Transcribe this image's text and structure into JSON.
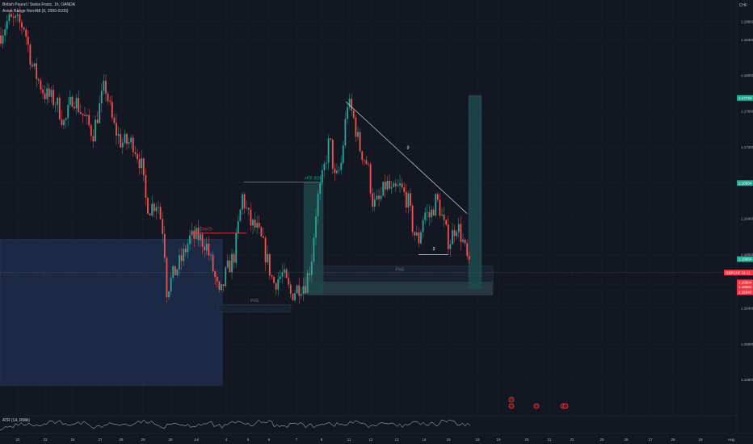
{
  "header": {
    "symbol_line": "British Pound / Swiss Franc, 1h, OANDA",
    "indicator_line": "Asian Range NoroN8 (0, 2000-0100)",
    "currency": "CHF"
  },
  "atr_panel": {
    "label": "ATR (14, RMA)",
    "value_label": "0.00300"
  },
  "chart_data": {
    "type": "candlestick",
    "symbol": "British Pound / Swiss Franc",
    "timeframe": "1h",
    "exchange": "OANDA",
    "y_axis": {
      "ticks": [
        1.186,
        1.184,
        1.18,
        1.176,
        1.172,
        1.168,
        1.164,
        1.16,
        1.156,
        1.154,
        1.15,
        1.146
      ],
      "range": [
        1.142,
        1.188
      ]
    },
    "x_axis": {
      "ticks": [
        {
          "label": "22",
          "i": 22
        },
        {
          "label": "23",
          "i": 56
        },
        {
          "label": "24",
          "i": 90
        },
        {
          "label": "27",
          "i": 124
        },
        {
          "label": "28",
          "i": 150
        },
        {
          "label": "29",
          "i": 177
        },
        {
          "label": "30",
          "i": 211
        },
        {
          "label": "Jul",
          "i": 243
        },
        {
          "label": "4",
          "i": 280
        },
        {
          "label": "5",
          "i": 307
        },
        {
          "label": "6",
          "i": 333
        },
        {
          "label": "7",
          "i": 367
        },
        {
          "label": "8",
          "i": 398
        },
        {
          "label": "11",
          "i": 432
        },
        {
          "label": "12",
          "i": 459
        },
        {
          "label": "13",
          "i": 491
        },
        {
          "label": "14",
          "i": 525
        },
        {
          "label": "15",
          "i": 555
        },
        {
          "label": "18",
          "i": 591
        },
        {
          "label": "19",
          "i": 617
        },
        {
          "label": "20",
          "i": 652
        },
        {
          "label": "21",
          "i": 680
        },
        {
          "label": "22",
          "i": 708
        },
        {
          "label": "25",
          "i": 745
        },
        {
          "label": "26",
          "i": 775
        },
        {
          "label": "27",
          "i": 805
        },
        {
          "label": "28",
          "i": 833
        },
        {
          "label": "29",
          "i": 867
        },
        {
          "label": "Aug",
          "i": 905
        }
      ],
      "last_bar": 582
    },
    "price_path": [
      [
        0,
        1.1845
      ],
      [
        10,
        1.1862
      ],
      [
        20,
        1.186
      ],
      [
        30,
        1.1855
      ],
      [
        40,
        1.181
      ],
      [
        55,
        1.178
      ],
      [
        70,
        1.177
      ],
      [
        80,
        1.1745
      ],
      [
        90,
        1.1778
      ],
      [
        100,
        1.176
      ],
      [
        115,
        1.1735
      ],
      [
        130,
        1.179
      ],
      [
        140,
        1.1745
      ],
      [
        150,
        1.1725
      ],
      [
        165,
        1.1725
      ],
      [
        175,
        1.17
      ],
      [
        180,
        1.1662
      ],
      [
        185,
        1.1652
      ],
      [
        195,
        1.166
      ],
      [
        203,
        1.162
      ],
      [
        206,
        1.156
      ],
      [
        215,
        1.1578
      ],
      [
        225,
        1.1595
      ],
      [
        235,
        1.1618
      ],
      [
        245,
        1.162
      ],
      [
        255,
        1.1612
      ],
      [
        265,
        1.1578
      ],
      [
        272,
        1.155
      ],
      [
        280,
        1.158
      ],
      [
        290,
        1.16
      ],
      [
        300,
        1.1665
      ],
      [
        310,
        1.1635
      ],
      [
        318,
        1.1628
      ],
      [
        325,
        1.1612
      ],
      [
        332,
        1.159
      ],
      [
        338,
        1.1568
      ],
      [
        350,
        1.1578
      ],
      [
        360,
        1.1555
      ],
      [
        370,
        1.1565
      ],
      [
        378,
        1.1568
      ],
      [
        385,
        1.159
      ],
      [
        392,
        1.1658
      ],
      [
        398,
        1.168
      ],
      [
        408,
        1.173
      ],
      [
        415,
        1.168
      ],
      [
        422,
        1.17
      ],
      [
        430,
        1.177
      ],
      [
        437,
        1.1755
      ],
      [
        445,
        1.172
      ],
      [
        455,
        1.17
      ],
      [
        462,
        1.1655
      ],
      [
        470,
        1.166
      ],
      [
        478,
        1.168
      ],
      [
        485,
        1.1668
      ],
      [
        495,
        1.1675
      ],
      [
        505,
        1.166
      ],
      [
        512,
        1.1625
      ],
      [
        518,
        1.1615
      ],
      [
        525,
        1.1648
      ],
      [
        532,
        1.1642
      ],
      [
        540,
        1.1662
      ],
      [
        545,
        1.165
      ],
      [
        550,
        1.163
      ],
      [
        556,
        1.1613
      ],
      [
        565,
        1.1635
      ],
      [
        572,
        1.1618
      ],
      [
        578,
        1.1595
      ],
      [
        582,
        1.158
      ]
    ],
    "atr_series_path": [
      0,
      0.6,
      0.3,
      0.8,
      0.4,
      0.7,
      0.2,
      0.6,
      0.5,
      0.9,
      0.3,
      0.7,
      0.4,
      0.6,
      0.3,
      0.8,
      0.5,
      0.9,
      0.4,
      0.6,
      0.3,
      0.7,
      0.5,
      0.8,
      0.4,
      0.6,
      0.3,
      0.7,
      0.5,
      1.0,
      0.4,
      0.6
    ],
    "annotations": [
      {
        "type": "label",
        "text": "ChoCh",
        "color": "#f23645",
        "i": 255,
        "price": 1.1627
      },
      {
        "type": "label",
        "text": "HTF BOS",
        "color": "#22ab94",
        "i": 388,
        "price": 1.1684
      },
      {
        "type": "label",
        "text": "$",
        "color": "#d1d4dc",
        "i": 537,
        "price": 1.1605
      },
      {
        "type": "label",
        "text": "$",
        "color": "#d1d4dc",
        "i": 505,
        "price": 1.1718
      },
      {
        "type": "label",
        "text": "FVG",
        "color": "#787b86",
        "i": 315,
        "price": 1.1547
      },
      {
        "type": "label",
        "text": "FVG",
        "color": "#787b86",
        "i": 495,
        "price": 1.1582
      }
    ],
    "levels": [
      {
        "name": "ChoCh level",
        "price": 1.1624,
        "from_i": 236,
        "to_i": 305,
        "color": "#f23645"
      },
      {
        "name": "HTF BOS level",
        "price": 1.1681,
        "from_i": 302,
        "to_i": 395,
        "color": "#22ab94"
      },
      {
        "name": "equal lows",
        "price": 1.16,
        "from_i": 518,
        "to_i": 555,
        "color": "#d1d4dc"
      }
    ],
    "trendline": {
      "from": {
        "i": 428,
        "price": 1.1771
      },
      "to": {
        "i": 578,
        "price": 1.1646
      }
    },
    "zones": [
      {
        "name": "demand zone",
        "i_from": 0,
        "i_to": 275,
        "price_top": 1.1617,
        "price_bottom": 1.1454,
        "fill": "#1e2d4a"
      },
      {
        "name": "fvg left",
        "i_from": 270,
        "i_to": 360,
        "price_top": 1.1544,
        "price_bottom": 1.1536,
        "fill": "#1a2436"
      },
      {
        "name": "fvg right",
        "i_from": 380,
        "i_to": 610,
        "price_top": 1.1587,
        "price_bottom": 1.1569,
        "fill": "#1a2436"
      },
      {
        "name": "teal zone",
        "i_from": 380,
        "i_to": 610,
        "price_top": 1.1569,
        "price_bottom": 1.1555,
        "fill": "#2a3e45"
      },
      {
        "name": "htf bos candle zone",
        "i_from": 376,
        "i_to": 400,
        "price_top": 1.1681,
        "price_bottom": 1.1556,
        "fill": "#1d4747"
      },
      {
        "name": "target zone",
        "i_from": 580,
        "i_to": 596,
        "price_top": 1.1778,
        "price_bottom": 1.1562,
        "fill": "#1c4a4e"
      }
    ],
    "price_labels": [
      {
        "text": "1.17734",
        "price": 1.1775,
        "color": "#22ab94"
      },
      {
        "text": "1.16804",
        "price": 1.168,
        "color": "#22ab94"
      },
      {
        "text": "1.15954",
        "price": 1.1595,
        "color": "#22ab94"
      },
      {
        "text": "GBPCHF",
        "price": 1.158,
        "color": "#f23645",
        "secondary": "01:11"
      },
      {
        "text": "1.15804",
        "price": 1.1569,
        "color": "#f23645"
      },
      {
        "text": "1.15694",
        "price": 1.1564,
        "color": "#f23645"
      },
      {
        "text": "1.15540",
        "price": 1.1558,
        "color": "#f23645"
      }
    ],
    "event_markers": [
      {
        "i": 633,
        "level": 0
      },
      {
        "i": 633,
        "level": 1
      },
      {
        "i": 664,
        "level": 1
      },
      {
        "i": 697,
        "level": 1
      },
      {
        "i": 700,
        "level": 1
      }
    ],
    "atr_value": 0.003
  }
}
